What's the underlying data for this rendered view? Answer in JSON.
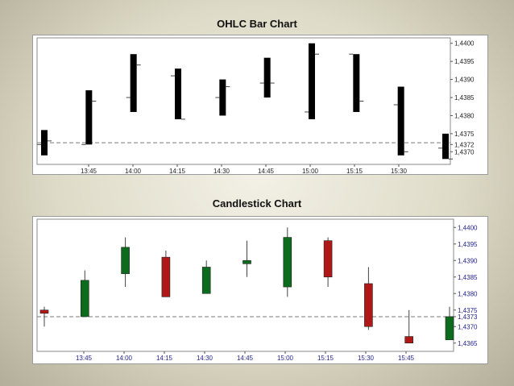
{
  "chart_data": [
    {
      "type": "ohlc",
      "title": "OHLC Bar Chart",
      "x_ticks": [
        "13:45",
        "14:00",
        "14:15",
        "14:30",
        "14:45",
        "15:00",
        "15:15",
        "15:30"
      ],
      "y_ticks": [
        "1,4400",
        "1,4395",
        "1,4390",
        "1,4385",
        "1,4380",
        "1,4375",
        "1,4372",
        "1,4370"
      ],
      "ylim": [
        1.43665,
        1.44015
      ],
      "reference_line": 1.43725,
      "bars": [
        {
          "open": 1.4372,
          "high": 1.4376,
          "low": 1.4369,
          "close": 1.4373
        },
        {
          "open": 1.4372,
          "high": 1.4387,
          "low": 1.4372,
          "close": 1.4384
        },
        {
          "open": 1.4385,
          "high": 1.4397,
          "low": 1.4381,
          "close": 1.4394
        },
        {
          "open": 1.4391,
          "high": 1.4393,
          "low": 1.4379,
          "close": 1.4379
        },
        {
          "open": 1.4385,
          "high": 1.439,
          "low": 1.438,
          "close": 1.4388
        },
        {
          "open": 1.4389,
          "high": 1.4396,
          "low": 1.4385,
          "close": 1.4389
        },
        {
          "open": 1.4381,
          "high": 1.44,
          "low": 1.4379,
          "close": 1.4397
        },
        {
          "open": 1.4397,
          "high": 1.4397,
          "low": 1.4381,
          "close": 1.4384
        },
        {
          "open": 1.4383,
          "high": 1.4388,
          "low": 1.4369,
          "close": 1.437
        },
        {
          "open": 1.4371,
          "high": 1.4375,
          "low": 1.4368,
          "close": 1.4368
        }
      ]
    },
    {
      "type": "candlestick",
      "title": "Candlestick Chart",
      "x_ticks": [
        "13:45",
        "14:00",
        "14:15",
        "14:30",
        "14:45",
        "15:00",
        "15:15",
        "15:30",
        "15:45"
      ],
      "y_ticks": [
        "1,4400",
        "1,4395",
        "1,4390",
        "1,4385",
        "1,4380",
        "1,4375",
        "1,4373",
        "1,4370",
        "1,4365"
      ],
      "ylim": [
        1.43625,
        1.44025
      ],
      "reference_line": 1.4373,
      "colors": {
        "up": "#0d6b1e",
        "down": "#b01818"
      },
      "candles": [
        {
          "open": 1.4375,
          "high": 1.4376,
          "low": 1.437,
          "close": 1.4374
        },
        {
          "open": 1.4373,
          "high": 1.4387,
          "low": 1.4373,
          "close": 1.4384
        },
        {
          "open": 1.4386,
          "high": 1.4397,
          "low": 1.4382,
          "close": 1.4394
        },
        {
          "open": 1.4391,
          "high": 1.4393,
          "low": 1.4379,
          "close": 1.4379
        },
        {
          "open": 1.438,
          "high": 1.439,
          "low": 1.438,
          "close": 1.4388
        },
        {
          "open": 1.4389,
          "high": 1.4396,
          "low": 1.4385,
          "close": 1.439
        },
        {
          "open": 1.4382,
          "high": 1.44,
          "low": 1.4379,
          "close": 1.4397
        },
        {
          "open": 1.4396,
          "high": 1.4397,
          "low": 1.4382,
          "close": 1.4385
        },
        {
          "open": 1.4383,
          "high": 1.4388,
          "low": 1.4369,
          "close": 1.437
        },
        {
          "open": 1.4367,
          "high": 1.4375,
          "low": 1.4365,
          "close": 1.4365
        },
        {
          "open": 1.4366,
          "high": 1.4376,
          "low": 1.4366,
          "close": 1.4373
        }
      ]
    }
  ]
}
